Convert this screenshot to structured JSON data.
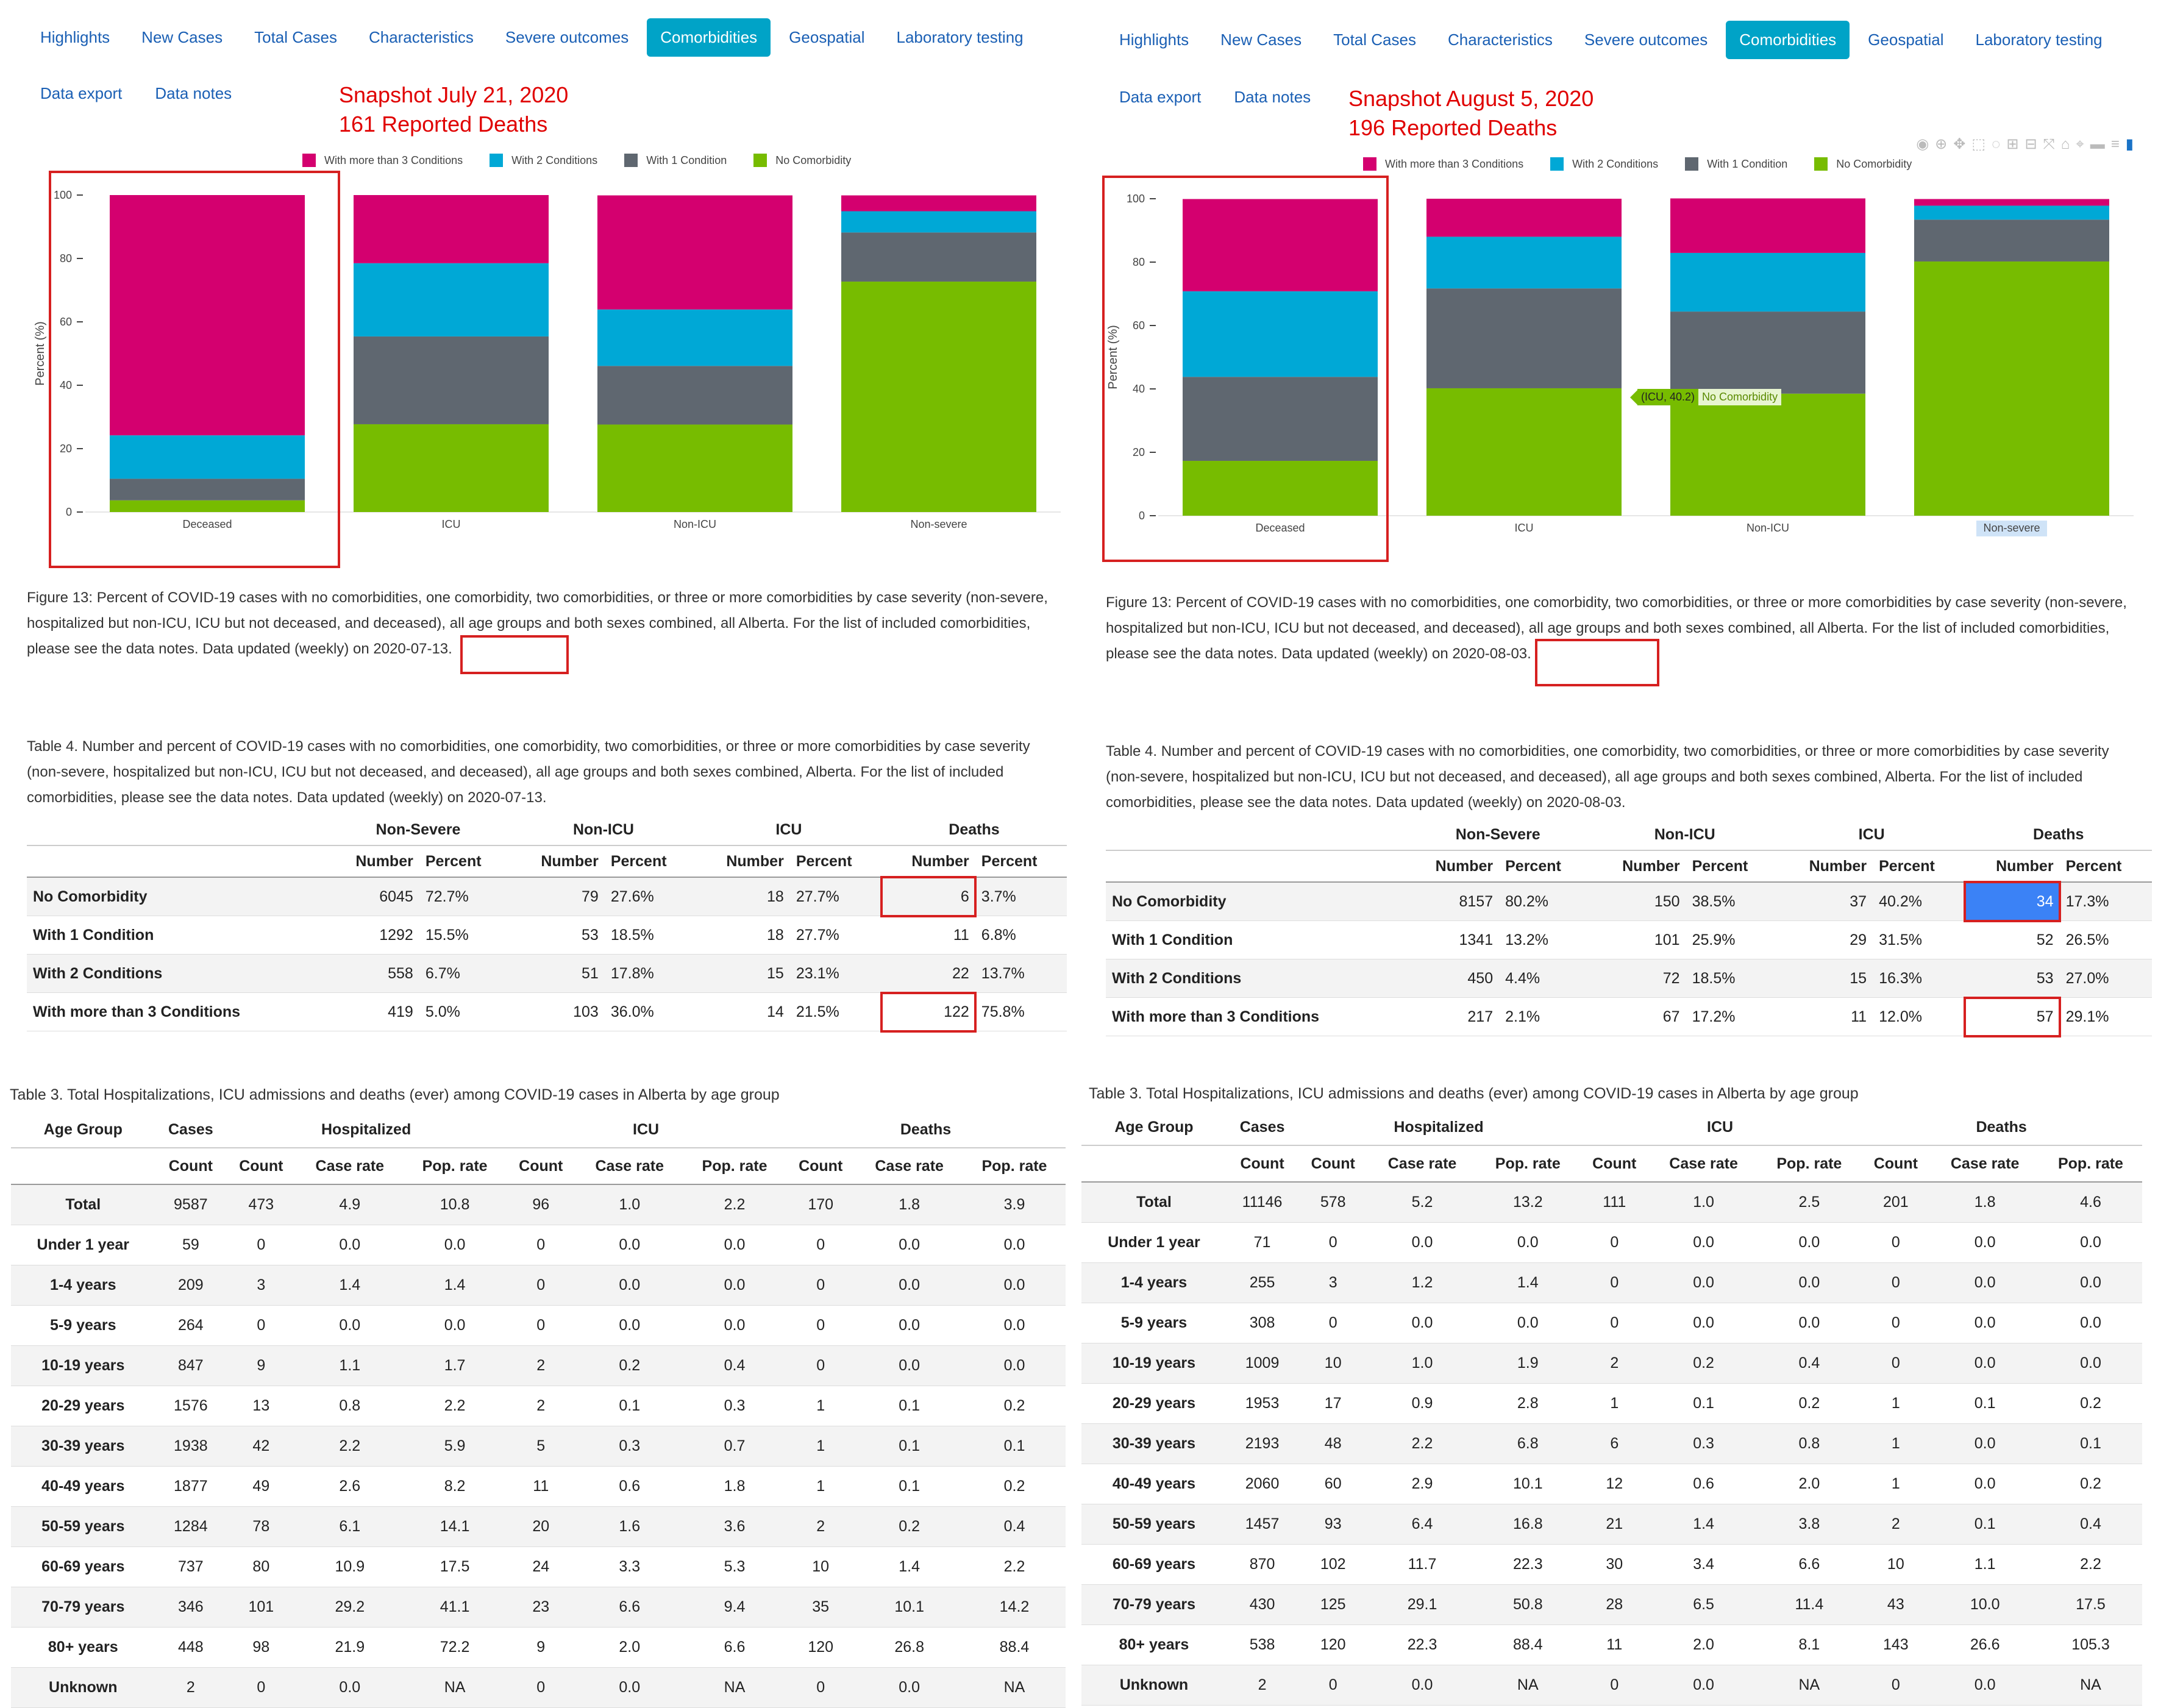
{
  "nav_tabs": [
    "Highlights",
    "New Cases",
    "Total Cases",
    "Characteristics",
    "Severe outcomes",
    "Comorbidities",
    "Geospatial",
    "Laboratory testing"
  ],
  "active_tab": "Comorbidities",
  "sub_links": [
    "Data export",
    "Data notes"
  ],
  "colors": {
    "more_than_3": "#d4006f",
    "two": "#00a8d6",
    "one": "#5f6770",
    "none": "#77bc00",
    "highlight": "#d62020",
    "active_tab": "#00a3c7"
  },
  "legend": [
    "With more than 3 Conditions",
    "With 2 Conditions",
    "With 1 Condition",
    "No Comorbidity"
  ],
  "left": {
    "snapshot_line1": "Snapshot July 21, 2020",
    "snapshot_line2": "161 Reported Deaths",
    "figure_caption": "Figure 13: Percent of COVID-19 cases with no comorbidities, one comorbidity, two comorbidities, or three or more comorbidities by case severity (non-severe, hospitalized but non-ICU, ICU but not deceased, and deceased), all age groups and both sexes combined, all Alberta. For the list of included comorbidities, please see the data notes. Data updated (weekly)",
    "figure_caption_date": "on 2020-07-13.",
    "table4_caption": "Table 4. Number and percent of COVID-19 cases with no comorbidities, one comorbidity, two comorbidities, or three or more comorbidities by case severity (non-severe, hospitalized but non-ICU, ICU but not deceased, and deceased), all age groups and both sexes combined, Alberta. For the list of included comorbidities, please see the data notes. Data updated (weekly) on 2020-07-13.",
    "table3_caption": "Table 3. Total Hospitalizations, ICU admissions and deaths (ever) among COVID-19 cases in Alberta by age group",
    "table4_rows": [
      [
        "No Comorbidity",
        "6045",
        "72.7%",
        "79",
        "27.6%",
        "18",
        "27.7%",
        "6",
        "3.7%"
      ],
      [
        "With 1 Condition",
        "1292",
        "15.5%",
        "53",
        "18.5%",
        "18",
        "27.7%",
        "11",
        "6.8%"
      ],
      [
        "With 2 Conditions",
        "558",
        "6.7%",
        "51",
        "17.8%",
        "15",
        "23.1%",
        "22",
        "13.7%"
      ],
      [
        "With more than 3 Conditions",
        "419",
        "5.0%",
        "103",
        "36.0%",
        "14",
        "21.5%",
        "122",
        "75.8%"
      ]
    ],
    "table3_rows": [
      [
        "Total",
        "9587",
        "473",
        "4.9",
        "10.8",
        "96",
        "1.0",
        "2.2",
        "170",
        "1.8",
        "3.9"
      ],
      [
        "Under 1 year",
        "59",
        "0",
        "0.0",
        "0.0",
        "0",
        "0.0",
        "0.0",
        "0",
        "0.0",
        "0.0"
      ],
      [
        "1-4 years",
        "209",
        "3",
        "1.4",
        "1.4",
        "0",
        "0.0",
        "0.0",
        "0",
        "0.0",
        "0.0"
      ],
      [
        "5-9 years",
        "264",
        "0",
        "0.0",
        "0.0",
        "0",
        "0.0",
        "0.0",
        "0",
        "0.0",
        "0.0"
      ],
      [
        "10-19 years",
        "847",
        "9",
        "1.1",
        "1.7",
        "2",
        "0.2",
        "0.4",
        "0",
        "0.0",
        "0.0"
      ],
      [
        "20-29 years",
        "1576",
        "13",
        "0.8",
        "2.2",
        "2",
        "0.1",
        "0.3",
        "1",
        "0.1",
        "0.2"
      ],
      [
        "30-39 years",
        "1938",
        "42",
        "2.2",
        "5.9",
        "5",
        "0.3",
        "0.7",
        "1",
        "0.1",
        "0.1"
      ],
      [
        "40-49 years",
        "1877",
        "49",
        "2.6",
        "8.2",
        "11",
        "0.6",
        "1.8",
        "1",
        "0.1",
        "0.2"
      ],
      [
        "50-59 years",
        "1284",
        "78",
        "6.1",
        "14.1",
        "20",
        "1.6",
        "3.6",
        "2",
        "0.2",
        "0.4"
      ],
      [
        "60-69 years",
        "737",
        "80",
        "10.9",
        "17.5",
        "24",
        "3.3",
        "5.3",
        "10",
        "1.4",
        "2.2"
      ],
      [
        "70-79 years",
        "346",
        "101",
        "29.2",
        "41.1",
        "23",
        "6.6",
        "9.4",
        "35",
        "10.1",
        "14.2"
      ],
      [
        "80+ years",
        "448",
        "98",
        "21.9",
        "72.2",
        "9",
        "2.0",
        "6.6",
        "120",
        "26.8",
        "88.4"
      ],
      [
        "Unknown",
        "2",
        "0",
        "0.0",
        "NA",
        "0",
        "0.0",
        "NA",
        "0",
        "0.0",
        "NA"
      ]
    ]
  },
  "right": {
    "snapshot_line1": "Snapshot August 5, 2020",
    "snapshot_line2": "196 Reported Deaths",
    "tooltip_value": "(ICU, 40.2)",
    "tooltip_name": "No Comorbidity",
    "figure_caption": "Figure 13: Percent of COVID-19 cases with no comorbidities, one comorbidity, two comorbidities, or three or more comorbidities by case severity (non-severe, hospitalized but non-ICU, ICU but not deceased, and deceased), all age groups and both sexes combined, all Alberta. For the list of included comorbidities, please see the data notes. Data updated (weekly)",
    "figure_caption_date": "on 2020-08-03.",
    "table4_caption": "Table 4. Number and percent of COVID-19 cases with no comorbidities, one comorbidity, two comorbidities, or three or more comorbidities by case severity (non-severe, hospitalized but non-ICU, ICU but not deceased, and deceased), all age groups and both sexes combined, Alberta. For the list of included comorbidities, please see the data notes. Data updated (weekly) on 2020-08-03.",
    "table3_caption": "Table 3. Total Hospitalizations, ICU admissions and deaths (ever) among COVID-19 cases in Alberta by age group",
    "table4_rows": [
      [
        "No Comorbidity",
        "8157",
        "80.2%",
        "150",
        "38.5%",
        "37",
        "40.2%",
        "34",
        "17.3%"
      ],
      [
        "With 1 Condition",
        "1341",
        "13.2%",
        "101",
        "25.9%",
        "29",
        "31.5%",
        "52",
        "26.5%"
      ],
      [
        "With 2 Conditions",
        "450",
        "4.4%",
        "72",
        "18.5%",
        "15",
        "16.3%",
        "53",
        "27.0%"
      ],
      [
        "With more than 3 Conditions",
        "217",
        "2.1%",
        "67",
        "17.2%",
        "11",
        "12.0%",
        "57",
        "29.1%"
      ]
    ],
    "table3_rows": [
      [
        "Total",
        "11146",
        "578",
        "5.2",
        "13.2",
        "111",
        "1.0",
        "2.5",
        "201",
        "1.8",
        "4.6"
      ],
      [
        "Under 1 year",
        "71",
        "0",
        "0.0",
        "0.0",
        "0",
        "0.0",
        "0.0",
        "0",
        "0.0",
        "0.0"
      ],
      [
        "1-4 years",
        "255",
        "3",
        "1.2",
        "1.4",
        "0",
        "0.0",
        "0.0",
        "0",
        "0.0",
        "0.0"
      ],
      [
        "5-9 years",
        "308",
        "0",
        "0.0",
        "0.0",
        "0",
        "0.0",
        "0.0",
        "0",
        "0.0",
        "0.0"
      ],
      [
        "10-19 years",
        "1009",
        "10",
        "1.0",
        "1.9",
        "2",
        "0.2",
        "0.4",
        "0",
        "0.0",
        "0.0"
      ],
      [
        "20-29 years",
        "1953",
        "17",
        "0.9",
        "2.8",
        "1",
        "0.1",
        "0.2",
        "1",
        "0.1",
        "0.2"
      ],
      [
        "30-39 years",
        "2193",
        "48",
        "2.2",
        "6.8",
        "6",
        "0.3",
        "0.8",
        "1",
        "0.0",
        "0.1"
      ],
      [
        "40-49 years",
        "2060",
        "60",
        "2.9",
        "10.1",
        "12",
        "0.6",
        "2.0",
        "1",
        "0.0",
        "0.2"
      ],
      [
        "50-59 years",
        "1457",
        "93",
        "6.4",
        "16.8",
        "21",
        "1.4",
        "3.8",
        "2",
        "0.1",
        "0.4"
      ],
      [
        "60-69 years",
        "870",
        "102",
        "11.7",
        "22.3",
        "30",
        "3.4",
        "6.6",
        "10",
        "1.1",
        "2.2"
      ],
      [
        "70-79 years",
        "430",
        "125",
        "29.1",
        "50.8",
        "28",
        "6.5",
        "11.4",
        "43",
        "10.0",
        "17.5"
      ],
      [
        "80+ years",
        "538",
        "120",
        "22.3",
        "88.4",
        "11",
        "2.0",
        "8.1",
        "143",
        "26.6",
        "105.3"
      ],
      [
        "Unknown",
        "2",
        "0",
        "0.0",
        "NA",
        "0",
        "0.0",
        "NA",
        "0",
        "0.0",
        "NA"
      ]
    ]
  },
  "table4_group_headers": [
    "Non-Severe",
    "Non-ICU",
    "ICU",
    "Deaths"
  ],
  "table4_col_headers": [
    "Number",
    "Percent"
  ],
  "table3_headers": [
    "Age Group",
    "Cases",
    "Hospitalized",
    "ICU",
    "Deaths"
  ],
  "table3_subheaders": [
    "Count",
    "Count",
    "Case rate",
    "Pop. rate",
    "Count",
    "Case rate",
    "Pop. rate",
    "Count",
    "Case rate",
    "Pop. rate"
  ],
  "chart_data": [
    {
      "type": "bar",
      "stacked": true,
      "title": "",
      "xlabel": "",
      "ylabel": "Percent (%)",
      "ylim": [
        0,
        100
      ],
      "yticks": [
        0,
        20,
        40,
        60,
        80,
        100
      ],
      "categories": [
        "Deceased",
        "ICU",
        "Non-ICU",
        "Non-severe"
      ],
      "series": [
        {
          "name": "No Comorbidity",
          "values": [
            3.7,
            27.7,
            27.6,
            72.7
          ]
        },
        {
          "name": "With 1 Condition",
          "values": [
            6.8,
            27.7,
            18.5,
            15.5
          ]
        },
        {
          "name": "With 2 Conditions",
          "values": [
            13.7,
            23.1,
            17.8,
            6.7
          ]
        },
        {
          "name": "With more than 3 Conditions",
          "values": [
            75.8,
            21.5,
            36.0,
            5.0
          ]
        }
      ],
      "legend_position": "top"
    },
    {
      "type": "bar",
      "stacked": true,
      "title": "",
      "xlabel": "",
      "ylabel": "Percent (%)",
      "ylim": [
        0,
        100
      ],
      "yticks": [
        0,
        20,
        40,
        60,
        80,
        100
      ],
      "categories": [
        "Deceased",
        "ICU",
        "Non-ICU",
        "Non-severe"
      ],
      "series": [
        {
          "name": "No Comorbidity",
          "values": [
            17.3,
            40.2,
            38.5,
            80.2
          ]
        },
        {
          "name": "With 1 Condition",
          "values": [
            26.5,
            31.5,
            25.9,
            13.2
          ]
        },
        {
          "name": "With 2 Conditions",
          "values": [
            27.0,
            16.3,
            18.5,
            4.4
          ]
        },
        {
          "name": "With more than 3 Conditions",
          "values": [
            29.1,
            12.0,
            17.2,
            2.1
          ]
        }
      ],
      "legend_position": "top"
    }
  ]
}
